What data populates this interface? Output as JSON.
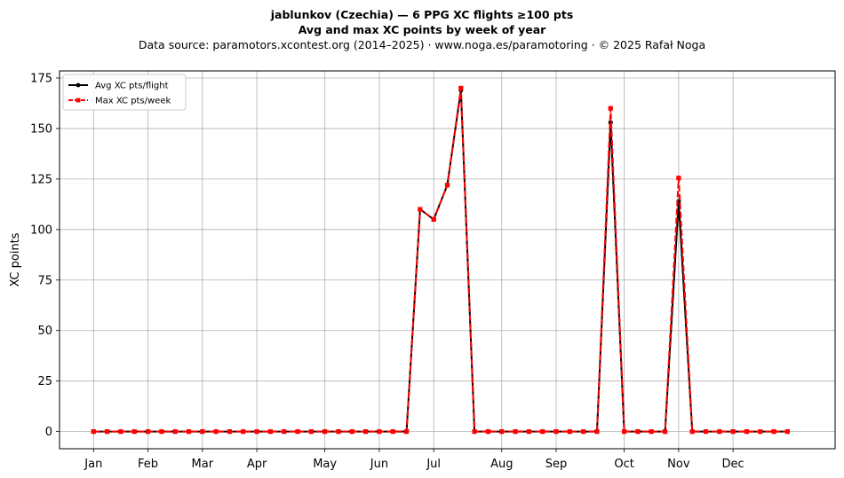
{
  "title": "jablunkov (Czechia)  —  6 PPG XC flights ≥100 pts",
  "subtitle": "Avg and max XC points by week of year",
  "source": "Data source: paramotors.xcontest.org (2014–2025)  ·  www.noga.es/paramotoring  ·  © 2025 Rafał Noga",
  "colors": {
    "avg": "#000000",
    "max": "#ff0000",
    "grid": "#b0b0b0"
  },
  "chart_data": {
    "type": "line",
    "title": "jablunkov (Czechia)  —  6 PPG XC flights ≥100 pts",
    "subtitle": "Avg and max XC points by week of year",
    "xlabel": "",
    "ylabel": "XC points",
    "x": [
      1,
      2,
      3,
      4,
      5,
      6,
      7,
      8,
      9,
      10,
      11,
      12,
      13,
      14,
      15,
      16,
      17,
      18,
      19,
      20,
      21,
      22,
      23,
      24,
      25,
      26,
      27,
      28,
      29,
      30,
      31,
      32,
      33,
      34,
      35,
      36,
      37,
      38,
      39,
      40,
      41,
      42,
      43,
      44,
      45,
      46,
      47,
      48,
      49,
      50,
      51,
      52
    ],
    "xlim": [
      -1.5,
      55.5
    ],
    "ylim": [
      -8.5,
      178.5
    ],
    "yticks": [
      0,
      25,
      50,
      75,
      100,
      125,
      150,
      175
    ],
    "xticks": [
      {
        "label": "Jan",
        "x": 1
      },
      {
        "label": "Feb",
        "x": 5
      },
      {
        "label": "Mar",
        "x": 9
      },
      {
        "label": "Apr",
        "x": 13
      },
      {
        "label": "May",
        "x": 18
      },
      {
        "label": "Jun",
        "x": 22
      },
      {
        "label": "Jul",
        "x": 26
      },
      {
        "label": "Aug",
        "x": 31
      },
      {
        "label": "Sep",
        "x": 35
      },
      {
        "label": "Oct",
        "x": 40
      },
      {
        "label": "Nov",
        "x": 44
      },
      {
        "label": "Dec",
        "x": 48
      }
    ],
    "grid": true,
    "legend_position": "top-left",
    "series": [
      {
        "name": "Avg XC pts/flight",
        "color": "#000000",
        "style": "solid",
        "marker": "circle",
        "values": [
          0,
          0,
          0,
          0,
          0,
          0,
          0,
          0,
          0,
          0,
          0,
          0,
          0,
          0,
          0,
          0,
          0,
          0,
          0,
          0,
          0,
          0,
          0,
          0,
          110,
          105,
          122,
          169,
          0,
          0,
          0,
          0,
          0,
          0,
          0,
          0,
          0,
          0,
          153,
          0,
          0,
          0,
          0,
          114,
          0,
          0,
          0,
          0,
          0,
          0,
          0,
          0
        ]
      },
      {
        "name": "Max XC pts/week",
        "color": "#ff0000",
        "style": "dashed",
        "marker": "square",
        "values": [
          0,
          0,
          0,
          0,
          0,
          0,
          0,
          0,
          0,
          0,
          0,
          0,
          0,
          0,
          0,
          0,
          0,
          0,
          0,
          0,
          0,
          0,
          0,
          0,
          110,
          105,
          122,
          170,
          0,
          0,
          0,
          0,
          0,
          0,
          0,
          0,
          0,
          0,
          160,
          0,
          0,
          0,
          0,
          125.5,
          0,
          0,
          0,
          0,
          0,
          0,
          0,
          0
        ]
      }
    ]
  }
}
